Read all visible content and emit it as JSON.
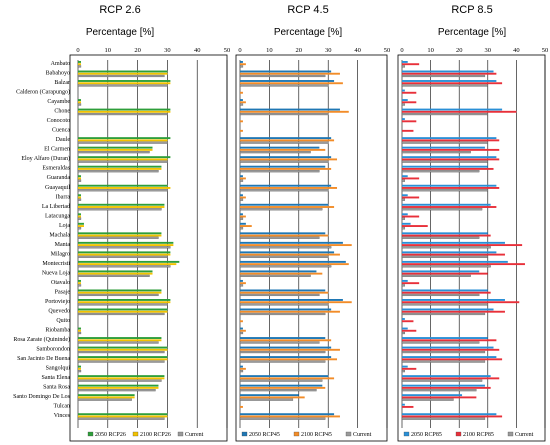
{
  "panels": [
    {
      "title": "RCP 2.6",
      "axis_label": "Percentage [%]"
    },
    {
      "title": "RCP 4.5",
      "axis_label": "Percentage [%]"
    },
    {
      "title": "RCP 8.5",
      "axis_label": "Percentage [%]"
    }
  ],
  "chart_data": [
    {
      "type": "bar",
      "orientation": "horizontal",
      "title": "RCP 2.6",
      "xlabel": "Percentage [%]",
      "xlim": [
        0,
        50
      ],
      "xticks": [
        0,
        10,
        20,
        30,
        40,
        50
      ],
      "grid": "vertical",
      "legend": "bottom",
      "colors": {
        "2050 RCP26": "#2e9e3a",
        "2100 RCP26": "#f2c200",
        "Current": "#9a9a9a"
      },
      "categories": [
        "Ambato",
        "Babahoyo",
        "Balzar",
        "Calderon (Carapungo)",
        "Cayambe",
        "Chone",
        "Conocoto",
        "Cuenca",
        "Daule",
        "El Carmen",
        "Eloy Alfaro (Duran)",
        "Esmeraldas",
        "Guaranda",
        "Guayaquil",
        "Ibarra",
        "La Libertad",
        "Latacunga",
        "Loja",
        "Machala",
        "Manta",
        "Milagro",
        "Montecristi",
        "Nueva Loja",
        "Otavalo",
        "Pasaje",
        "Portoviejo",
        "Quevedo",
        "Quito",
        "Riobamba",
        "Rosa Zarate (Quininde)",
        "Samborondon",
        "San Jacinto De Buena",
        "Sangolqui",
        "Santa Elena",
        "Santa Rosa",
        "Santo Domingo De Los",
        "Tulcan",
        "Vinces"
      ],
      "series": [
        {
          "name": "2050 RCP26",
          "values": [
            1,
            30,
            31,
            0,
            1,
            31,
            0,
            0,
            31,
            25,
            31,
            28,
            1,
            30,
            1,
            29,
            1,
            2,
            28,
            32,
            31,
            34,
            25,
            1,
            28,
            31,
            30,
            0,
            1,
            28,
            30,
            30,
            1,
            29,
            27,
            19,
            0,
            30
          ]
        },
        {
          "name": "2100 RCP26",
          "values": [
            1,
            30,
            31,
            0,
            1,
            31,
            0,
            0,
            30,
            25,
            30,
            28,
            1,
            31,
            1,
            29,
            1,
            2,
            28,
            32,
            31,
            33,
            25,
            1,
            28,
            31,
            30,
            0,
            1,
            28,
            30,
            30,
            1,
            29,
            27,
            19,
            0,
            30
          ]
        },
        {
          "name": "Current",
          "values": [
            1,
            29,
            30,
            0,
            1,
            30,
            0,
            0,
            30,
            24,
            30,
            27,
            1,
            30,
            1,
            28,
            1,
            1,
            27,
            31,
            30,
            31,
            24,
            1,
            27,
            30,
            29,
            0,
            1,
            27,
            29,
            29,
            1,
            28,
            26,
            18,
            0,
            29
          ]
        }
      ]
    },
    {
      "type": "bar",
      "orientation": "horizontal",
      "title": "RCP 4.5",
      "xlabel": "Percentage [%]",
      "xlim": [
        0,
        50
      ],
      "xticks": [
        0,
        10,
        20,
        30,
        40,
        50
      ],
      "grid": "vertical",
      "legend": "bottom",
      "colors": {
        "2050 RCP45": "#1f77b4",
        "2100 RCP45": "#f28c28",
        "Current": "#9a9a9a"
      },
      "categories": [
        "Ambato",
        "Babahoyo",
        "Balzar",
        "Calderon (Carapungo)",
        "Cayambe",
        "Chone",
        "Conocoto",
        "Cuenca",
        "Daule",
        "El Carmen",
        "Eloy Alfaro (Duran)",
        "Esmeraldas",
        "Guaranda",
        "Guayaquil",
        "Ibarra",
        "La Libertad",
        "Latacunga",
        "Loja",
        "Machala",
        "Manta",
        "Milagro",
        "Montecristi",
        "Nueva Loja",
        "Otavalo",
        "Pasaje",
        "Portoviejo",
        "Quevedo",
        "Quito",
        "Riobamba",
        "Rosa Zarate (Quininde)",
        "Samborondon",
        "San Jacinto De Buena",
        "Sangolqui",
        "Santa Elena",
        "Santa Rosa",
        "Santo Domingo De Los",
        "Tulcan",
        "Vinces"
      ],
      "series": [
        {
          "name": "2050 RCP45",
          "values": [
            1,
            31,
            32,
            0,
            1,
            34,
            0,
            0,
            31,
            27,
            31,
            29,
            1,
            31,
            1,
            30,
            1,
            2,
            29,
            35,
            32,
            36,
            26,
            1,
            29,
            35,
            31,
            0,
            1,
            29,
            31,
            31,
            1,
            30,
            28,
            20,
            0,
            32
          ]
        },
        {
          "name": "2100 RCP45",
          "values": [
            2,
            34,
            35,
            1,
            2,
            37,
            1,
            1,
            32,
            29,
            33,
            31,
            2,
            33,
            2,
            32,
            2,
            4,
            30,
            38,
            34,
            37,
            28,
            2,
            30,
            38,
            34,
            1,
            2,
            31,
            34,
            33,
            2,
            32,
            29,
            22,
            1,
            34
          ]
        },
        {
          "name": "Current",
          "values": [
            1,
            29,
            30,
            0,
            1,
            30,
            0,
            0,
            30,
            24,
            30,
            27,
            1,
            30,
            1,
            28,
            1,
            1,
            27,
            31,
            30,
            31,
            24,
            1,
            27,
            30,
            29,
            0,
            1,
            27,
            29,
            29,
            1,
            28,
            26,
            18,
            0,
            29
          ]
        }
      ]
    },
    {
      "type": "bar",
      "orientation": "horizontal",
      "title": "RCP 8.5",
      "xlabel": "Percentage [%]",
      "xlim": [
        0,
        50
      ],
      "xticks": [
        0,
        10,
        20,
        30,
        40,
        50
      ],
      "grid": "vertical",
      "legend": "bottom",
      "colors": {
        "2050 RCP85": "#2a8fd6",
        "2100 RCP85": "#e8303a",
        "Current": "#9a9a9a"
      },
      "categories": [
        "Ambato",
        "Babahoyo",
        "Balzar",
        "Calderon (Carapungo)",
        "Cayambe",
        "Chone",
        "Conocoto",
        "Cuenca",
        "Daule",
        "El Carmen",
        "Eloy Alfaro (Duran)",
        "Esmeraldas",
        "Guaranda",
        "Guayaquil",
        "Ibarra",
        "La Libertad",
        "Latacunga",
        "Loja",
        "Machala",
        "Manta",
        "Milagro",
        "Montecristi",
        "Nueva Loja",
        "Otavalo",
        "Pasaje",
        "Portoviejo",
        "Quevedo",
        "Quito",
        "Riobamba",
        "Rosa Zarate (Quininde)",
        "Samborondon",
        "San Jacinto De Buena",
        "Sangolqui",
        "Santa Elena",
        "Santa Rosa",
        "Santo Domingo De Los",
        "Tulcan",
        "Vinces"
      ],
      "series": [
        {
          "name": "2050 RCP85",
          "values": [
            2,
            32,
            33,
            1,
            2,
            35,
            1,
            0,
            33,
            29,
            33,
            30,
            2,
            33,
            2,
            31,
            2,
            3,
            30,
            36,
            33,
            37,
            27,
            2,
            30,
            36,
            32,
            1,
            2,
            30,
            32,
            33,
            2,
            31,
            29,
            21,
            1,
            33
          ]
        },
        {
          "name": "2100 RCP85",
          "values": [
            6,
            33,
            35,
            5,
            5,
            40,
            5,
            4,
            34,
            34,
            34,
            32,
            6,
            34,
            6,
            33,
            6,
            9,
            31,
            42,
            36,
            43,
            30,
            6,
            31,
            41,
            36,
            4,
            5,
            33,
            34,
            35,
            5,
            34,
            31,
            26,
            4,
            35
          ]
        },
        {
          "name": "Current",
          "values": [
            1,
            29,
            30,
            0,
            1,
            30,
            0,
            0,
            30,
            24,
            30,
            27,
            1,
            30,
            1,
            28,
            1,
            1,
            27,
            31,
            30,
            31,
            24,
            1,
            27,
            30,
            29,
            0,
            1,
            27,
            29,
            29,
            1,
            28,
            26,
            18,
            0,
            29
          ]
        }
      ]
    }
  ]
}
